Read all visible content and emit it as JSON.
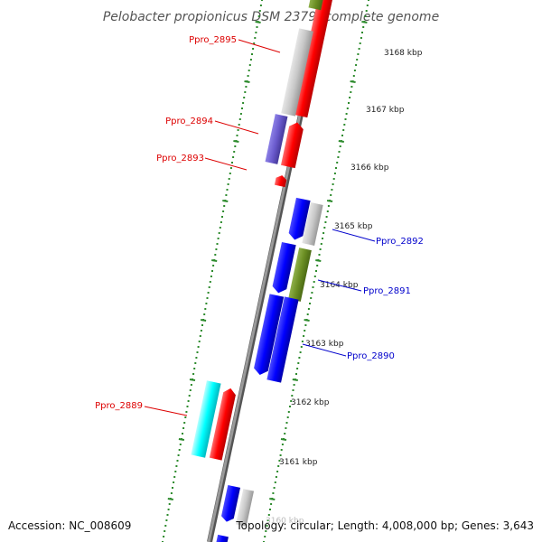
{
  "title": "Pelobacter propionicus DSM 2379, complete genome",
  "footer": {
    "accession": "Accession: NC_008609",
    "summary": "Topology: circular; Length: 4,008,000 bp; Genes: 3,643"
  },
  "ticks": [
    {
      "label": "3168 kbp"
    },
    {
      "label": "3167 kbp"
    },
    {
      "label": "3166 kbp"
    },
    {
      "label": "3165 kbp"
    },
    {
      "label": "3164 kbp"
    },
    {
      "label": "3163 kbp"
    },
    {
      "label": "3162 kbp"
    },
    {
      "label": "3161 kbp"
    },
    {
      "label": "3160 kbp"
    }
  ],
  "gene_labels": [
    {
      "text": "Ppro_2895",
      "color": "#dd0000"
    },
    {
      "text": "Ppro_2894",
      "color": "#dd0000"
    },
    {
      "text": "Ppro_2893",
      "color": "#dd0000"
    },
    {
      "text": "Ppro_2892",
      "color": "#0000cc"
    },
    {
      "text": "Ppro_2891",
      "color": "#0000cc"
    },
    {
      "text": "Ppro_2890",
      "color": "#0000cc"
    },
    {
      "text": "Ppro_2889",
      "color": "#dd0000"
    }
  ],
  "colors": {
    "backbone": "#8a8a8a",
    "tick_marks": "#2e8b2e",
    "red": "#ff0000",
    "blue": "#0000ff",
    "gray": "#c8c8c8",
    "olive": "#6b8e23",
    "purple": "#6a5acd",
    "cyan": "#00ffff"
  }
}
